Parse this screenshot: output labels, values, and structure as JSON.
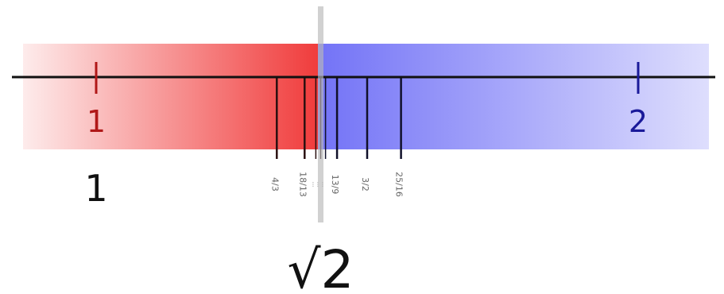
{
  "diagram": {
    "colors": {
      "background": "#ffffff",
      "left_band": "#f03c3c",
      "right_band": "#5a5af5",
      "axis": "#111111",
      "left_label": "#b01818",
      "right_label": "#1a1a9a",
      "sqrt_marker": "#b8b8b8",
      "convergent_ticks": "#222222"
    },
    "number_line": {
      "min": 1,
      "max": 2,
      "endpoints": [
        {
          "value": 1,
          "label": "1"
        },
        {
          "value": 2,
          "label": "2"
        }
      ]
    },
    "convergents": [
      {
        "value": 1.3333,
        "label": "4/3"
      },
      {
        "value": 1.3846,
        "label": "18/13"
      },
      {
        "value": 1.4053,
        "label": "..."
      },
      {
        "value": 1.4142,
        "label": "..."
      },
      {
        "value": 1.4231,
        "label": "..."
      },
      {
        "value": 1.4444,
        "label": "13/9"
      },
      {
        "value": 1.5,
        "label": "3/2"
      },
      {
        "value": 1.5625,
        "label": "25/16"
      }
    ],
    "lower_left_label": "1",
    "sqrt_label": "√2",
    "sqrt_value": 1.41421356
  }
}
